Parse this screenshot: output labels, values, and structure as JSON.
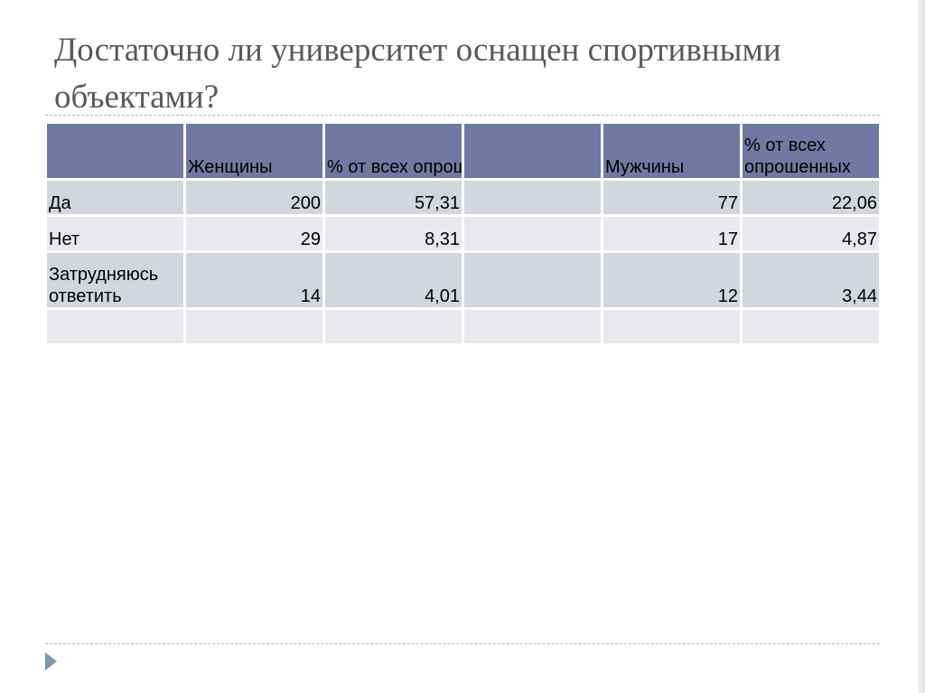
{
  "slide": {
    "title": "Достаточно ли университет оснащен спортивными объектами?"
  },
  "table": {
    "headers": [
      "",
      "Женщины",
      "% от всех опрошенных",
      "",
      "Мужчины",
      "% от всех опрошенных"
    ],
    "rows": [
      [
        "Да",
        "200",
        "57,31",
        "",
        "77",
        "22,06"
      ],
      [
        "Нет",
        "29",
        "8,31",
        "",
        "17",
        "4,87"
      ],
      [
        "Затрудняюсь ответить",
        "14",
        "4,01",
        "",
        "12",
        "3,44"
      ],
      [
        "",
        "",
        "",
        "",
        "",
        ""
      ]
    ]
  },
  "colors": {
    "header_bg": "#7079a1",
    "row_dark": "#d4d6de",
    "row_light": "#e8e9ed",
    "title_text": "#595959",
    "divider": "#a9bccb",
    "bullet": "#8196b0"
  },
  "icons": {
    "bullet": "triangle-right-icon"
  }
}
